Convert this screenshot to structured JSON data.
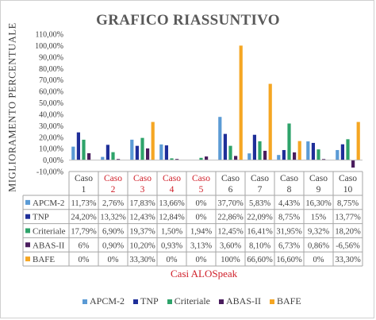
{
  "chart_data": {
    "type": "bar",
    "title": "GRAFICO RIASSUNTIVO",
    "ylabel": "MIGLIORAMENTO PERCENTUALE",
    "xlabel": "Casi ALOSpeak",
    "ylim": [
      -10,
      110
    ],
    "ytick_labels": [
      "-10,00%",
      "0,00%",
      "10,00%",
      "20,00%",
      "30,00%",
      "40,00%",
      "50,00%",
      "60,00%",
      "70,00%",
      "80,00%",
      "90,00%",
      "100,00%",
      "110,00%"
    ],
    "grid": false,
    "legend_position": "bottom",
    "categories": [
      {
        "line1": "Caso",
        "line2": "1",
        "color": "#404040"
      },
      {
        "line1": "Caso",
        "line2": "2",
        "color": "#d0202a"
      },
      {
        "line1": "Caso",
        "line2": "3",
        "color": "#d0202a"
      },
      {
        "line1": "Caso",
        "line2": "4",
        "color": "#d0202a"
      },
      {
        "line1": "Caso",
        "line2": "5",
        "color": "#d0202a"
      },
      {
        "line1": "Caso",
        "line2": "6",
        "color": "#404040"
      },
      {
        "line1": "Caso",
        "line2": "7",
        "color": "#404040"
      },
      {
        "line1": "Caso",
        "line2": "8",
        "color": "#404040"
      },
      {
        "line1": "Caso",
        "line2": "9",
        "color": "#404040"
      },
      {
        "line1": "Caso",
        "line2": "10",
        "color": "#404040"
      }
    ],
    "series": [
      {
        "name": "APCM-2",
        "color": "#5b9bd5",
        "values": [
          11.73,
          2.76,
          17.83,
          13.66,
          0,
          37.7,
          5.83,
          4.43,
          16.3,
          8.75
        ],
        "labels": [
          "11,73%",
          "2,76%",
          "17,83%",
          "13,66%",
          "0%",
          "37,70%",
          "5,83%",
          "4,43%",
          "16,30%",
          "8,75%"
        ]
      },
      {
        "name": "TNP",
        "color": "#1f2f99",
        "values": [
          24.2,
          13.32,
          12.43,
          12.84,
          0,
          22.86,
          22.09,
          8.75,
          15,
          13.77
        ],
        "labels": [
          "24,20%",
          "13,32%",
          "12,43%",
          "12,84%",
          "0%",
          "22,86%",
          "22,09%",
          "8,75%",
          "15%",
          "13,77%"
        ]
      },
      {
        "name": "Criteriale",
        "color": "#2ea36a",
        "values": [
          17.79,
          6.9,
          19.37,
          1.5,
          1.94,
          12.45,
          16.41,
          31.95,
          9.32,
          18.2
        ],
        "labels": [
          "17,79%",
          "6,90%",
          "19,37%",
          "1,50%",
          "1,94%",
          "12,45%",
          "16,41%",
          "31,95%",
          "9,32%",
          "18,20%"
        ]
      },
      {
        "name": "ABAS-II",
        "color": "#4a1d5e",
        "values": [
          6,
          0.9,
          10.2,
          0.93,
          3.13,
          3.6,
          8.1,
          6.73,
          0.86,
          -6.56
        ],
        "labels": [
          "6%",
          "0,90%",
          "10,20%",
          "0,93%",
          "3,13%",
          "3,60%",
          "8,10%",
          "6,73%",
          "0,86%",
          "-6,56%"
        ]
      },
      {
        "name": "BAFE",
        "color": "#f5a623",
        "values": [
          0,
          0,
          33.3,
          0,
          0,
          100,
          66.6,
          16.6,
          0,
          33.3
        ],
        "labels": [
          "0%",
          "0%",
          "33,30%",
          "0%",
          "0%",
          "100%",
          "66,60%",
          "16,60%",
          "0%",
          "33,30%"
        ]
      }
    ]
  }
}
